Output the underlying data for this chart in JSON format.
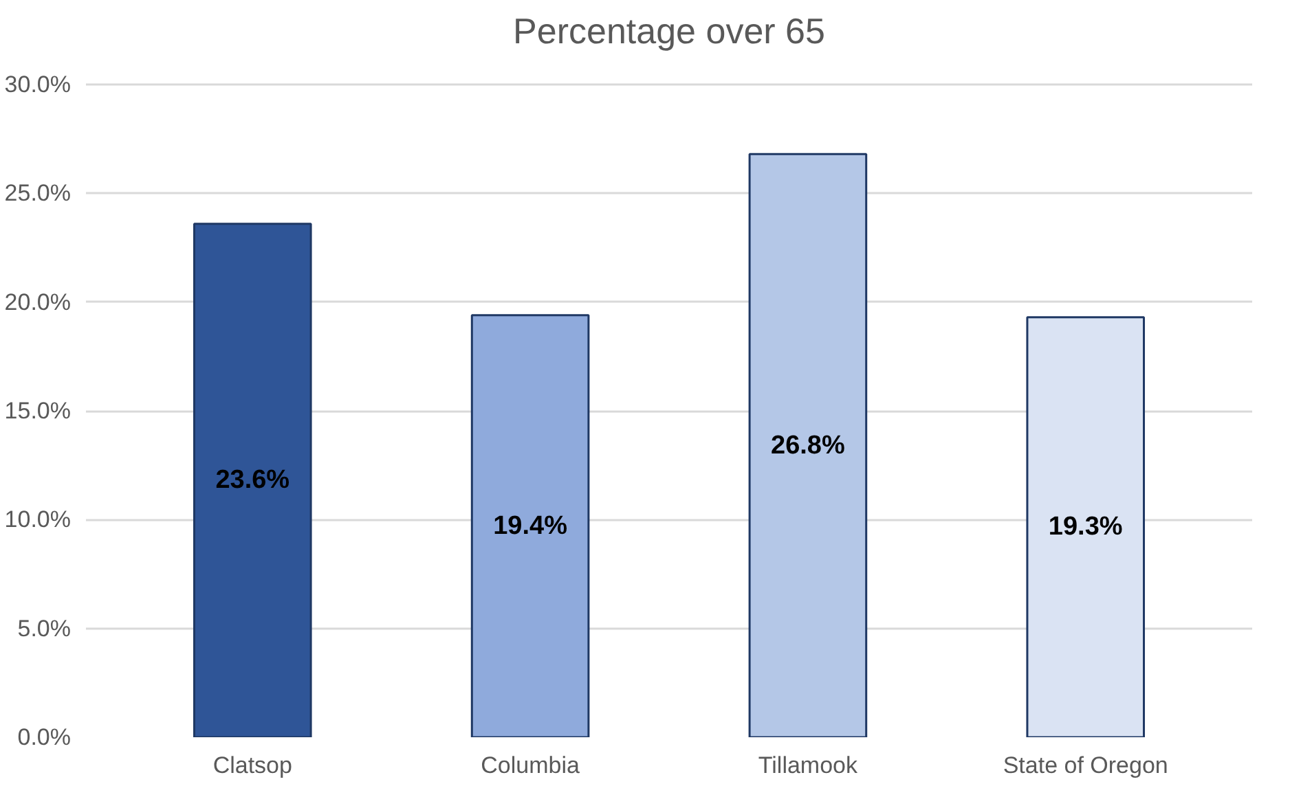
{
  "chart_data": {
    "type": "bar",
    "title": "Percentage over 65",
    "categories": [
      "Clatsop",
      "Columbia",
      "Tillamook",
      "State of Oregon"
    ],
    "values": [
      23.6,
      19.4,
      26.8,
      19.3
    ],
    "colors": [
      "#2f5597",
      "#8faadc",
      "#b4c7e7",
      "#dae3f3"
    ],
    "value_labels": [
      "23.6%",
      "19.4%",
      "26.8%",
      "19.3%"
    ],
    "ylim": [
      0,
      30
    ],
    "yticks": [
      {
        "value": 0,
        "label": "0.0%"
      },
      {
        "value": 5,
        "label": "5.0%"
      },
      {
        "value": 10,
        "label": "10.0%"
      },
      {
        "value": 15,
        "label": "15.0%"
      },
      {
        "value": 20,
        "label": "20.0%"
      },
      {
        "value": 25,
        "label": "25.0%"
      },
      {
        "value": 30,
        "label": "30.0%"
      }
    ],
    "grid": "y"
  }
}
